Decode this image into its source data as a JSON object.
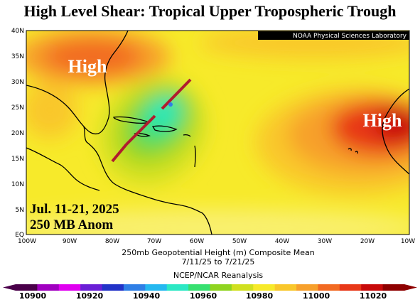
{
  "title": "High Level Shear: Tropical Upper Tropospheric Trough",
  "source_badge": "NOAA Physical Sciences Laboratory",
  "highs": [
    "High",
    "High"
  ],
  "overlay": {
    "dates": "Jul. 11-21, 2025",
    "level": "250 MB Anom"
  },
  "lat_labels": [
    "40N",
    "35N",
    "30N",
    "25N",
    "20N",
    "15N",
    "10N",
    "5N",
    "EQ"
  ],
  "lon_labels": [
    "100W",
    "90W",
    "80W",
    "70W",
    "60W",
    "50W",
    "40W",
    "30W",
    "20W",
    "10W"
  ],
  "caption": {
    "line1": "250mb Geopotential Height (m) Composite Mean",
    "line2": "7/11/25   to 7/21/25",
    "line3": "NCEP/NCAR Reanalysis"
  },
  "colorbar": {
    "labels": [
      "10900",
      "10920",
      "10940",
      "10960",
      "10980",
      "11000",
      "11020"
    ],
    "colors": [
      "#4a004a",
      "#a000c0",
      "#e000f0",
      "#6a1fd6",
      "#2233c8",
      "#2f7fe6",
      "#25b8f0",
      "#2ce8c4",
      "#37e070",
      "#8fd420",
      "#d0e020",
      "#f7ea2a",
      "#f9c72b",
      "#f7a02c",
      "#f26a22",
      "#e83818",
      "#c80a0a",
      "#8e0000"
    ]
  }
}
